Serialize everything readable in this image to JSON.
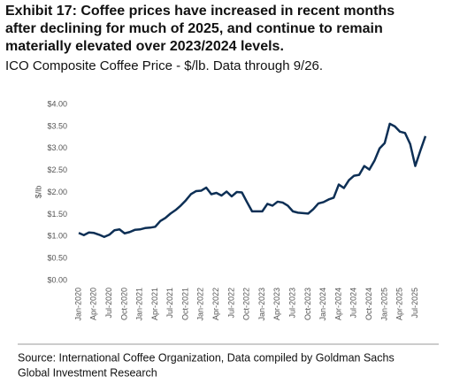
{
  "chart_data": {
    "type": "line",
    "title": [
      "Exhibit 17: Coffee prices have increased in recent months",
      "after declining for much of 2025, and continue to remain",
      "materially elevated over 2023/2024 levels."
    ],
    "subtitle": "ICO Composite Coffee Price - $/lb. Data through 9/26.",
    "y_label": "$/lb",
    "source": [
      "Source: International Coffee Organization, Data compiled by Goldman Sachs",
      "Global Investment Research"
    ],
    "categories": [
      "Jan-2020",
      null,
      null,
      "Apr-2020",
      null,
      null,
      "Jul-2020",
      null,
      null,
      "Oct-2020",
      null,
      null,
      "Jan-2021",
      null,
      null,
      "Apr-2021",
      null,
      null,
      "Jul-2021",
      null,
      null,
      "Oct-2021",
      null,
      null,
      "Jan-2022",
      null,
      null,
      "Apr-2022",
      null,
      null,
      "Jul-2022",
      null,
      null,
      "Oct-2022",
      null,
      null,
      "Jan-2023",
      null,
      null,
      "Apr-2023",
      null,
      null,
      "Jul-2023",
      null,
      null,
      "Oct-2023",
      null,
      null,
      "Jan-2024",
      null,
      null,
      "Apr-2024",
      null,
      null,
      "Jul-2024",
      null,
      null,
      "Oct-2024",
      null,
      null,
      "Jan-2025",
      null,
      null,
      "Apr-2025",
      null,
      null,
      "Jul-2025",
      null,
      null
    ],
    "series": [
      {
        "name": "ICO Composite",
        "color": "#0d2f55",
        "values": [
          1.08,
          1.03,
          1.09,
          1.08,
          1.04,
          0.99,
          1.04,
          1.14,
          1.16,
          1.07,
          1.1,
          1.15,
          1.16,
          1.19,
          1.2,
          1.22,
          1.35,
          1.42,
          1.52,
          1.6,
          1.7,
          1.82,
          1.96,
          2.03,
          2.04,
          2.11,
          1.96,
          1.99,
          1.93,
          2.02,
          1.91,
          2.01,
          2.0,
          1.78,
          1.57,
          1.57,
          1.57,
          1.74,
          1.7,
          1.79,
          1.77,
          1.7,
          1.57,
          1.54,
          1.53,
          1.52,
          1.62,
          1.75,
          1.78,
          1.84,
          1.88,
          2.18,
          2.1,
          2.28,
          2.38,
          2.4,
          2.6,
          2.52,
          2.72,
          3.0,
          3.12,
          3.56,
          3.5,
          3.38,
          3.35,
          3.1,
          2.6,
          2.95,
          3.28
        ]
      }
    ],
    "ylim": [
      0,
      4
    ],
    "yticks": [
      {
        "value": 0,
        "label": "$0.00"
      },
      {
        "value": 0.5,
        "label": "$0.50"
      },
      {
        "value": 1,
        "label": "$1.00"
      },
      {
        "value": 1.5,
        "label": "$1.50"
      },
      {
        "value": 2,
        "label": "$2.00"
      },
      {
        "value": 2.5,
        "label": "$2.50"
      },
      {
        "value": 3,
        "label": "$3.00"
      },
      {
        "value": 3.5,
        "label": "$3.50"
      },
      {
        "value": 4,
        "label": "$4.00"
      }
    ],
    "grid": false
  }
}
